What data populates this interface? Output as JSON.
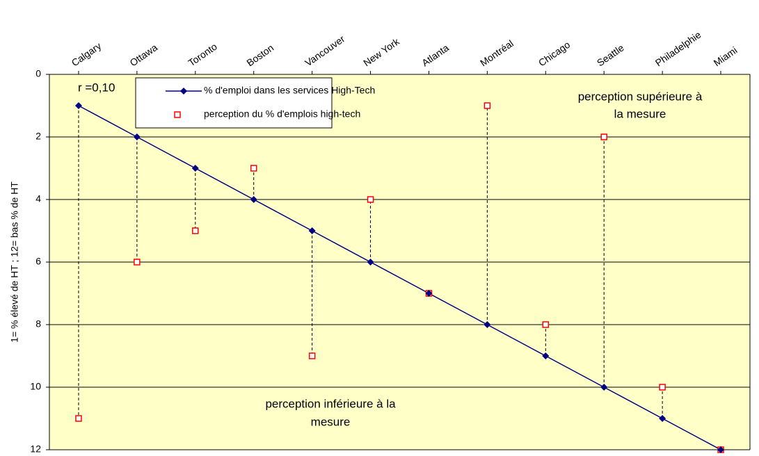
{
  "chart_data": {
    "type": "line",
    "categories": [
      "Calgary",
      "Ottawa",
      "Toronto",
      "Boston",
      "Vancouver",
      "New York",
      "Atlanta",
      "Montréal",
      "Chicago",
      "Seattle",
      "Philadelphie",
      "Miami"
    ],
    "series": [
      {
        "name": "% d'emploi dans les services High-Tech",
        "color": "#000080",
        "marker": "diamond",
        "values": [
          1,
          2,
          3,
          4,
          5,
          6,
          7,
          8,
          9,
          10,
          11,
          12
        ]
      },
      {
        "name": "perception du % d'emplois high-tech",
        "color": "#ff0000",
        "marker": "square",
        "values": [
          11,
          6,
          5,
          3,
          9,
          4,
          7,
          1,
          8,
          2,
          10,
          12
        ]
      }
    ],
    "ylabel": "1=  % élevé de HT ; 12= bas % de HT",
    "ylim": [
      0,
      12
    ],
    "yticks": [
      0,
      2,
      4,
      6,
      8,
      10,
      12
    ],
    "y_inverted": true,
    "grid": true,
    "annotations": {
      "r": "r =0,10",
      "above": [
        "perception supérieure à",
        "la mesure"
      ],
      "below": [
        "perception inférieure à la",
        "mesure"
      ]
    },
    "legend": "upper left"
  }
}
